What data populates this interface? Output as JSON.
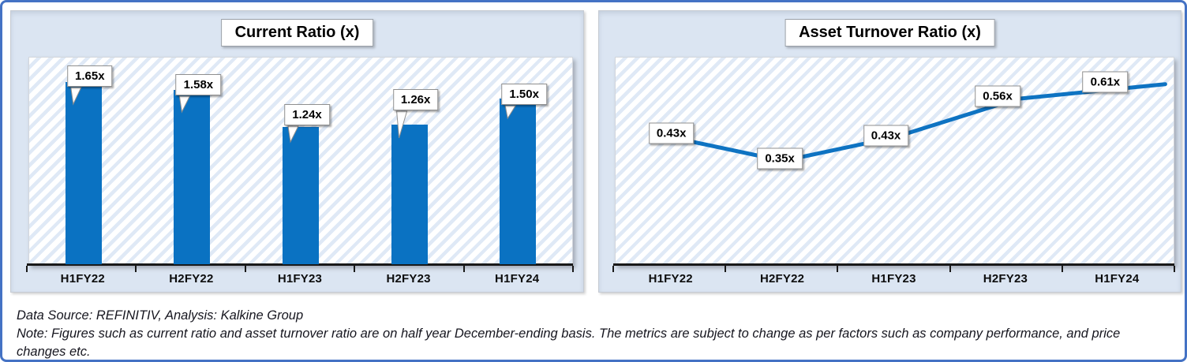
{
  "frame": {
    "border_color": "#4472C4"
  },
  "chart_data": [
    {
      "type": "bar",
      "title": "Current Ratio (x)",
      "categories": [
        "H1FY22",
        "H2FY22",
        "H1FY23",
        "H2FY23",
        "H1FY24"
      ],
      "values": [
        1.65,
        1.58,
        1.24,
        1.26,
        1.5
      ],
      "data_labels": [
        "1.65x",
        "1.58x",
        "1.24x",
        "1.26x",
        "1.50x"
      ],
      "unit": "x",
      "ylim": [
        0,
        1.87
      ],
      "bar_color": "#0A72C2",
      "xlabel": "",
      "ylabel": "",
      "grid": false,
      "legend": "none",
      "plot_background": "diagonal-hatch"
    },
    {
      "type": "line",
      "title": "Asset Turnover Ratio (x)",
      "categories": [
        "H1FY22",
        "H2FY22",
        "H1FY23",
        "H2FY23",
        "H1FY24"
      ],
      "values": [
        0.43,
        0.35,
        0.43,
        0.56,
        0.61
      ],
      "data_labels": [
        "0.43x",
        "0.35x",
        "0.43x",
        "0.56x",
        "0.61x"
      ],
      "unit": "x",
      "ylim": [
        0,
        0.7
      ],
      "line_color": "#0E73C2",
      "xlabel": "",
      "ylabel": "",
      "grid": false,
      "legend": "none",
      "plot_background": "diagonal-hatch"
    }
  ],
  "footer": {
    "source": "Data Source: REFINITIV, Analysis: Kalkine Group",
    "note": "Note: Figures such as current ratio and asset turnover ratio are on half year December-ending basis. The metrics are subject to change as per factors such as company performance, and price changes etc."
  }
}
